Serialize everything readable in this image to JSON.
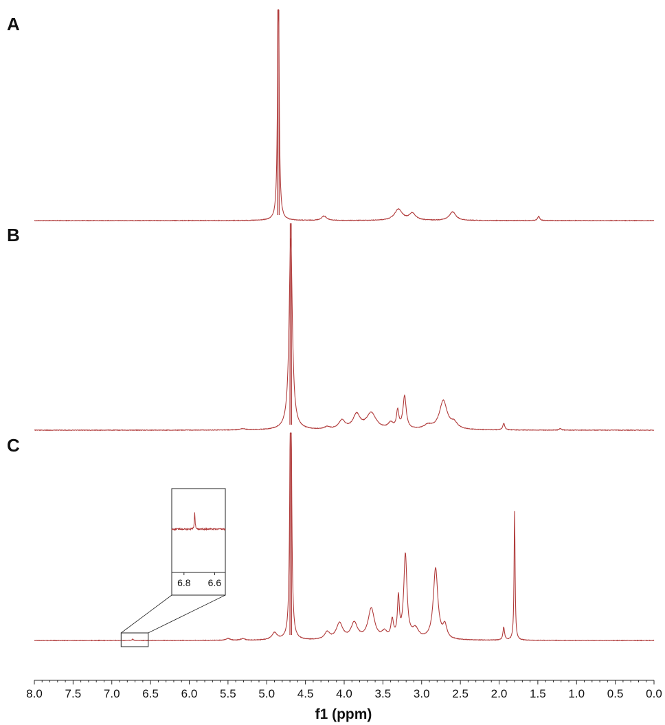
{
  "colors": {
    "spectrum": "#b03a3a",
    "axis": "#222222",
    "background": "#ffffff"
  },
  "chart_data": {
    "type": "line",
    "title": "",
    "xlabel": "f1 (ppm)",
    "ylabel": "",
    "xlim": [
      8.0,
      0.0
    ],
    "x_reversed": true,
    "grid": false,
    "legend": "none",
    "x_ticks": [
      "8.0",
      "7.5",
      "7.0",
      "6.5",
      "6.0",
      "5.5",
      "5.0",
      "4.5",
      "4.0",
      "3.5",
      "3.0",
      "2.5",
      "2.0",
      "1.5",
      "1.0",
      "0.5",
      "0.0"
    ],
    "panels": [
      {
        "label": "A",
        "peaks": [
          {
            "ppm": 4.85,
            "height": 1.0,
            "width": 0.012,
            "clipped": true
          },
          {
            "ppm": 4.26,
            "height": 0.018,
            "width": 0.04
          },
          {
            "ppm": 3.3,
            "height": 0.045,
            "width": 0.06
          },
          {
            "ppm": 3.12,
            "height": 0.028,
            "width": 0.05
          },
          {
            "ppm": 2.6,
            "height": 0.035,
            "width": 0.05
          },
          {
            "ppm": 1.49,
            "height": 0.018,
            "width": 0.015
          }
        ]
      },
      {
        "label": "B",
        "peaks": [
          {
            "ppm": 4.69,
            "height": 1.0,
            "width": 0.025,
            "clipped": true
          },
          {
            "ppm": 5.31,
            "height": 0.006,
            "width": 0.04
          },
          {
            "ppm": 4.22,
            "height": 0.012,
            "width": 0.04
          },
          {
            "ppm": 4.03,
            "height": 0.045,
            "width": 0.05
          },
          {
            "ppm": 3.84,
            "height": 0.075,
            "width": 0.055
          },
          {
            "ppm": 3.65,
            "height": 0.085,
            "width": 0.075
          },
          {
            "ppm": 3.4,
            "height": 0.03,
            "width": 0.04
          },
          {
            "ppm": 3.31,
            "height": 0.09,
            "width": 0.018
          },
          {
            "ppm": 3.22,
            "height": 0.17,
            "width": 0.025
          },
          {
            "ppm": 2.92,
            "height": 0.02,
            "width": 0.06
          },
          {
            "ppm": 2.72,
            "height": 0.15,
            "width": 0.06
          },
          {
            "ppm": 2.58,
            "height": 0.03,
            "width": 0.05
          },
          {
            "ppm": 1.94,
            "height": 0.035,
            "width": 0.015
          },
          {
            "ppm": 1.21,
            "height": 0.008,
            "width": 0.015
          }
        ]
      },
      {
        "label": "C",
        "peaks": [
          {
            "ppm": 4.69,
            "height": 1.0,
            "width": 0.012,
            "clipped": true
          },
          {
            "ppm": 6.73,
            "height": 0.004,
            "width": 0.008
          },
          {
            "ppm": 5.5,
            "height": 0.006,
            "width": 0.03
          },
          {
            "ppm": 5.31,
            "height": 0.005,
            "width": 0.03
          },
          {
            "ppm": 4.9,
            "height": 0.022,
            "width": 0.04
          },
          {
            "ppm": 4.22,
            "height": 0.022,
            "width": 0.04
          },
          {
            "ppm": 4.06,
            "height": 0.05,
            "width": 0.05
          },
          {
            "ppm": 3.87,
            "height": 0.05,
            "width": 0.05
          },
          {
            "ppm": 3.65,
            "height": 0.095,
            "width": 0.05
          },
          {
            "ppm": 3.48,
            "height": 0.02,
            "width": 0.04
          },
          {
            "ppm": 3.38,
            "height": 0.055,
            "width": 0.02
          },
          {
            "ppm": 3.3,
            "height": 0.12,
            "width": 0.015
          },
          {
            "ppm": 3.21,
            "height": 0.26,
            "width": 0.025
          },
          {
            "ppm": 3.08,
            "height": 0.03,
            "width": 0.05
          },
          {
            "ppm": 2.82,
            "height": 0.22,
            "width": 0.035
          },
          {
            "ppm": 2.7,
            "height": 0.04,
            "width": 0.03
          },
          {
            "ppm": 1.94,
            "height": 0.04,
            "width": 0.012
          },
          {
            "ppm": 1.8,
            "height": 0.4,
            "width": 0.008
          }
        ],
        "inset": {
          "region_ppm": [
            6.88,
            6.53
          ],
          "tick_labels": [
            "6.8",
            "6.6"
          ],
          "tick_values": [
            6.8,
            6.6
          ],
          "peak_ppm": 6.73
        }
      }
    ]
  }
}
